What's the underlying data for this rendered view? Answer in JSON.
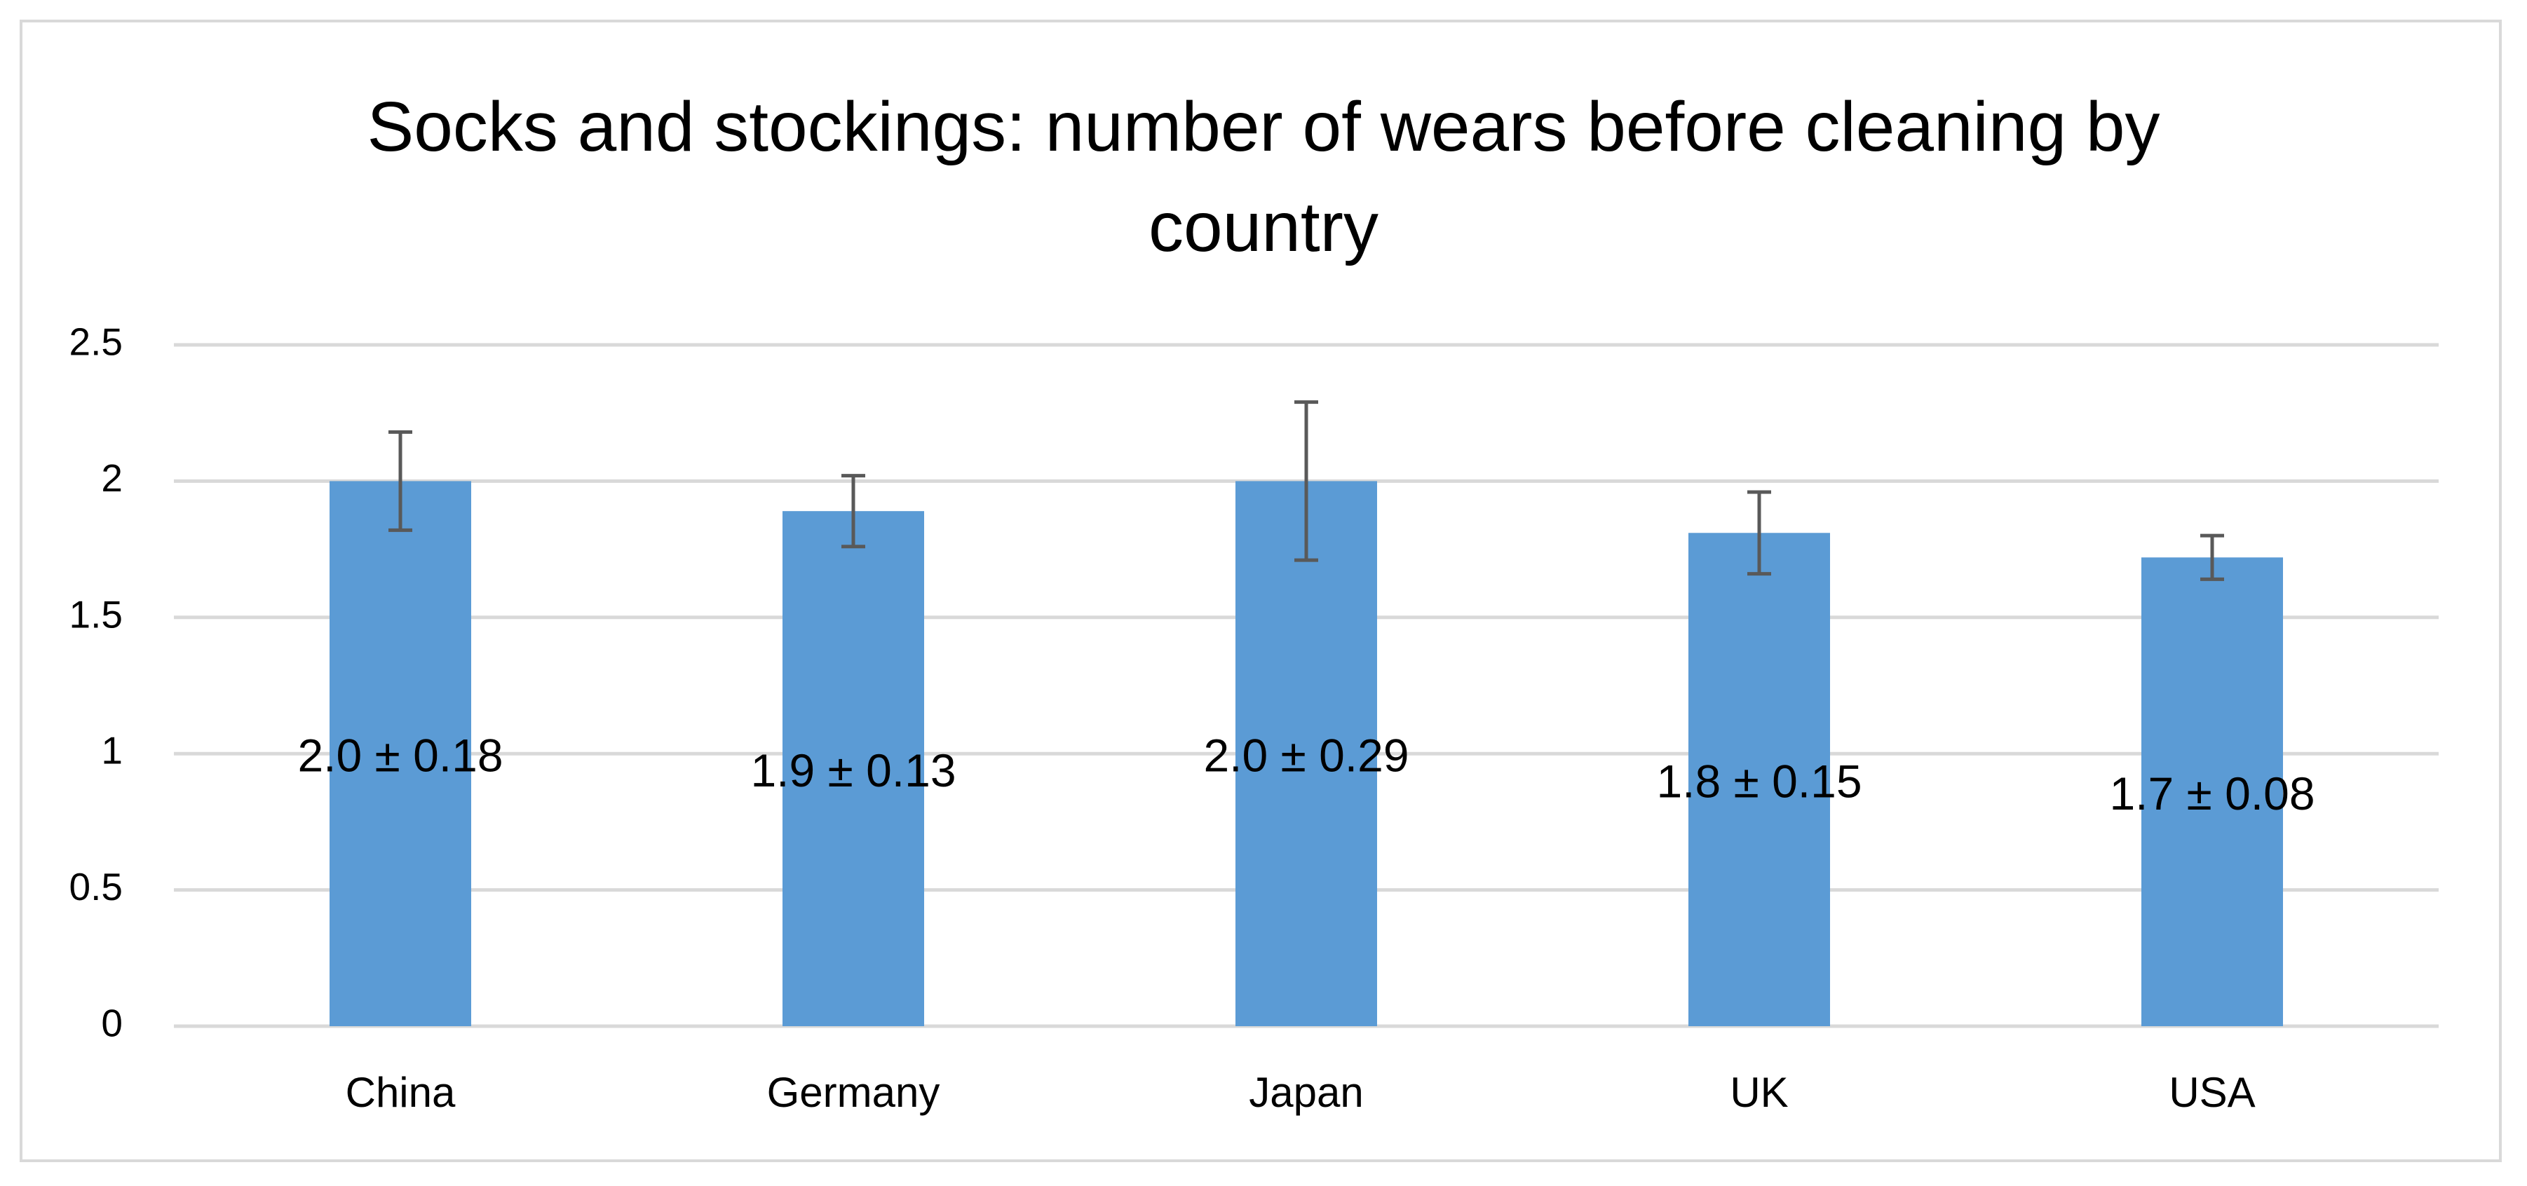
{
  "chart_data": {
    "type": "bar",
    "title": "Socks and stockings: number of wears before cleaning by country",
    "categories": [
      "China",
      "Germany",
      "Japan",
      "UK",
      "USA"
    ],
    "values": [
      2.0,
      1.89,
      2.0,
      1.81,
      1.72
    ],
    "errors": [
      0.18,
      0.13,
      0.29,
      0.15,
      0.08
    ],
    "value_labels": [
      "2.0 ± 0.18",
      "1.9 ± 0.13",
      "2.0 ± 0.29",
      "1.8 ± 0.15",
      "1.7 ± 0.08"
    ],
    "color": "#5b9bd5",
    "error_color": "#595959",
    "ylim": [
      0,
      2.5
    ],
    "yticks": [
      0,
      0.5,
      1,
      1.5,
      2,
      2.5
    ],
    "grid": true
  }
}
